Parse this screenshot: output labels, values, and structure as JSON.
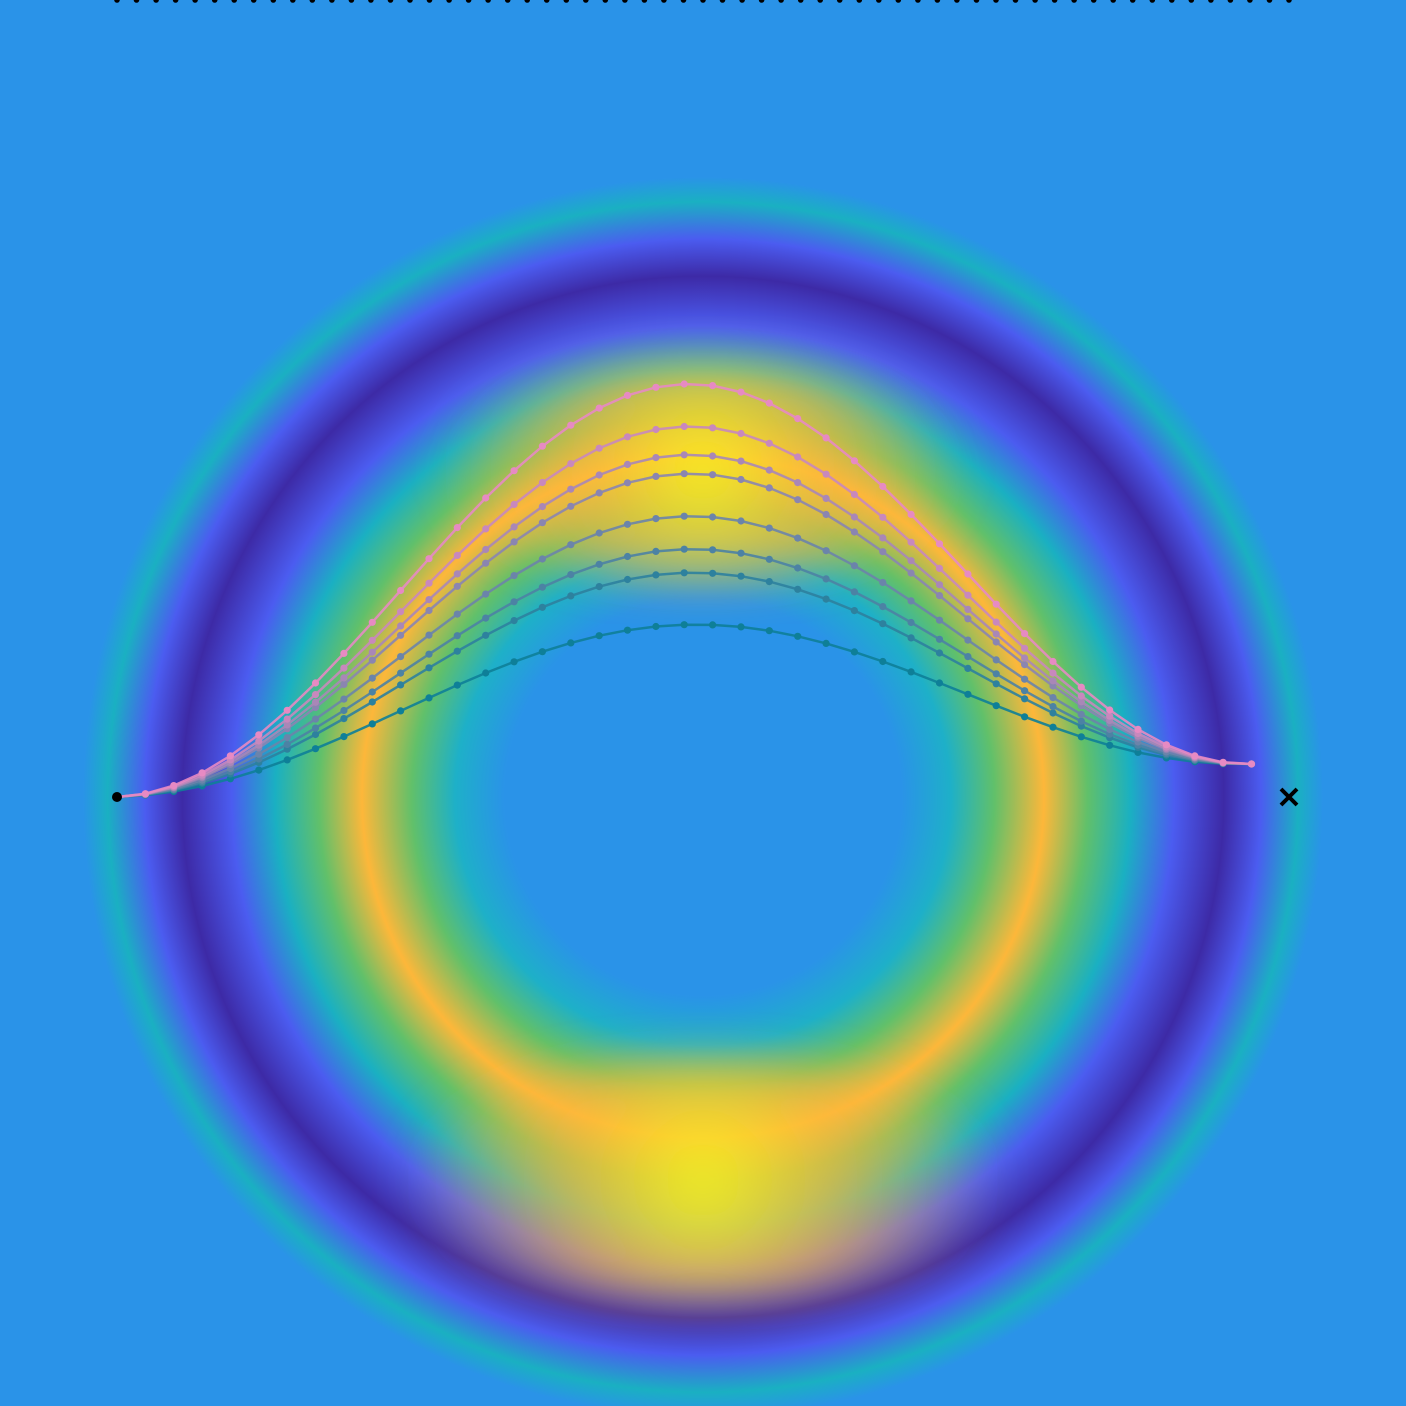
{
  "chart_data": {
    "type": "line",
    "description_free": true,
    "background": {
      "kind": "heatmap",
      "colormap": "parula",
      "colors": {
        "field": "#2a93e8",
        "dark_ring": "#3d2aa6",
        "blue_ring": "#4b5cf0",
        "teal": "#1ab0c2",
        "green": "#61c06a",
        "orange": "#fdb73a",
        "yellow": "#f7f11f"
      }
    },
    "xlim": [
      -1.25,
      1.25
    ],
    "ylim": [
      -1.25,
      1.25
    ],
    "grid": false,
    "axes_visible": false,
    "main_path": {
      "color": "#000000",
      "start": [
        -1.25,
        0.0
      ],
      "end": [
        1.25,
        0.0
      ],
      "peak": [
        0.0,
        0.73
      ],
      "start_marker": "dot",
      "end_marker": "x"
    },
    "iterate_paths": {
      "color_start": "#0e7f98",
      "color_end": "#e78ac3",
      "peaks": [
        0.33,
        0.44,
        0.49,
        0.56,
        0.65,
        0.69,
        0.75,
        0.84
      ],
      "start": [
        -1.25,
        0.0
      ],
      "end": [
        1.17,
        0.07
      ]
    }
  }
}
